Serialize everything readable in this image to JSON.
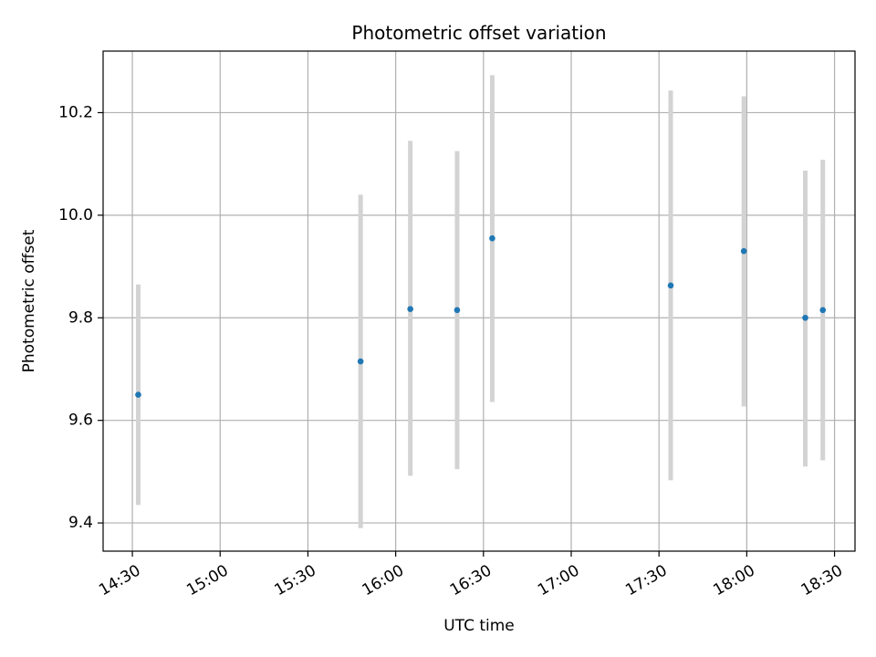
{
  "chart_data": {
    "type": "scatter",
    "title": "Photometric offset variation",
    "xlabel": "UTC time",
    "ylabel": "Photometric offset",
    "x_ticks": [
      "14:30",
      "15:00",
      "15:30",
      "16:00",
      "16:30",
      "17:00",
      "17:30",
      "18:00",
      "18:30"
    ],
    "y_ticks": [
      "9.4",
      "9.6",
      "9.8",
      "10.0",
      "10.2"
    ],
    "xlim": [
      "14:20",
      "18:37"
    ],
    "ylim": [
      9.345,
      10.32
    ],
    "grid": true,
    "colors": {
      "point": "#1f77b4",
      "errorbar": "#d3d3d3",
      "grid": "#b0b0b0"
    },
    "series": [
      {
        "points": [
          {
            "x": "14:32",
            "y": 9.65,
            "y_low": 9.435,
            "y_high": 9.865
          },
          {
            "x": "15:48",
            "y": 9.715,
            "y_low": 9.39,
            "y_high": 10.04
          },
          {
            "x": "16:05",
            "y": 9.817,
            "y_low": 9.492,
            "y_high": 10.145
          },
          {
            "x": "16:21",
            "y": 9.815,
            "y_low": 9.505,
            "y_high": 10.125
          },
          {
            "x": "16:33",
            "y": 9.955,
            "y_low": 9.636,
            "y_high": 10.273
          },
          {
            "x": "17:34",
            "y": 9.863,
            "y_low": 9.483,
            "y_high": 10.243
          },
          {
            "x": "17:59",
            "y": 9.93,
            "y_low": 9.627,
            "y_high": 10.232
          },
          {
            "x": "18:20",
            "y": 9.8,
            "y_low": 9.51,
            "y_high": 10.087
          },
          {
            "x": "18:26",
            "y": 9.815,
            "y_low": 9.522,
            "y_high": 10.108
          }
        ]
      }
    ]
  }
}
